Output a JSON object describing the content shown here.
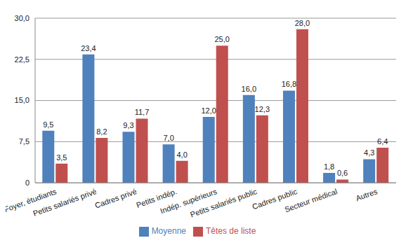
{
  "chart_data": {
    "type": "bar",
    "categories": [
      "Foyer, étudiants",
      "Petits salariés privé",
      "Cadres privé",
      "Petits indép.",
      "Indép. supérieurs",
      "Petits salariés public",
      "Cadres public",
      "Secteur médical",
      "Autres"
    ],
    "series": [
      {
        "name": "Moyenne",
        "color": "#4f81bd",
        "values": [
          9.5,
          23.4,
          9.3,
          7.0,
          12.0,
          16.0,
          16.8,
          1.8,
          4.3
        ],
        "value_labels": [
          "9,5",
          "23,4",
          "9,3",
          "7,0",
          "12,0",
          "16,0",
          "16,8",
          "1,8",
          "4,3"
        ]
      },
      {
        "name": "Têtes de liste",
        "color": "#c0504d",
        "values": [
          3.5,
          8.2,
          11.7,
          4.0,
          25.0,
          12.3,
          28.0,
          0.6,
          6.4
        ],
        "value_labels": [
          "3,5",
          "8,2",
          "11,7",
          "4,0",
          "25,0",
          "12,3",
          "28,0",
          "0,6",
          "6,4"
        ]
      }
    ],
    "ylim": [
      0,
      30
    ],
    "yticks": [
      0,
      {
        "value": 7.5,
        "label": "7,5"
      },
      {
        "value": 15,
        "label": "15,0"
      },
      {
        "value": 22.5,
        "label": "22,5"
      },
      {
        "value": 30,
        "label": "30,0"
      }
    ],
    "grid": true,
    "legend": "bottom",
    "data_labels": true
  }
}
